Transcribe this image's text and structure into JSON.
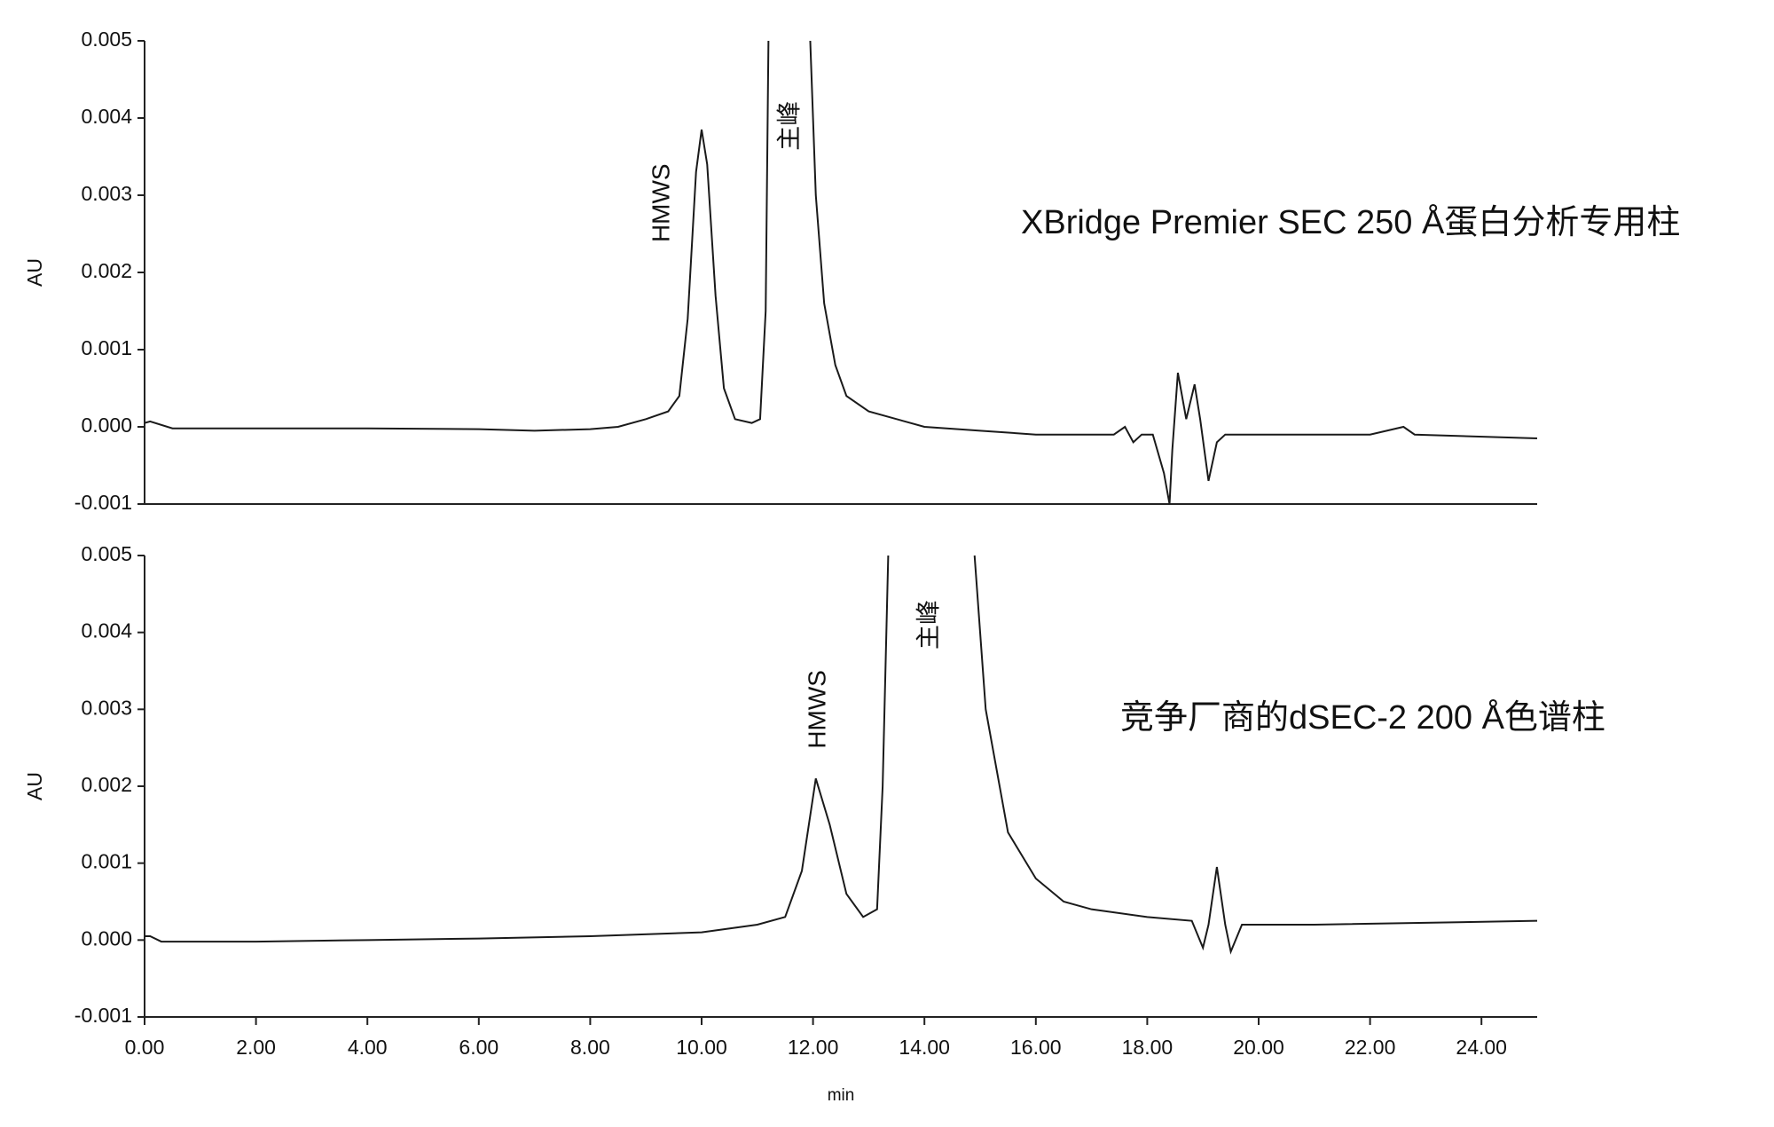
{
  "chart_data": [
    {
      "type": "line",
      "title": "XBridge Premier SEC 250 Å蛋白分析专用柱",
      "ylabel": "AU",
      "annotations": [
        "HMWS",
        "主峰"
      ],
      "xlim": [
        0,
        25
      ],
      "ylim": [
        -0.001,
        0.005
      ],
      "yticks": [
        -0.001,
        {
          "value": 0,
          "label": "0.000"
        },
        0.001,
        0.002,
        0.003,
        0.004,
        0.005
      ],
      "color": "#1a1a1a",
      "x": [
        0,
        0.1,
        0.5,
        2,
        4,
        6,
        7,
        8,
        8.5,
        9.0,
        9.4,
        9.6,
        9.75,
        9.9,
        10.0,
        10.1,
        10.25,
        10.4,
        10.6,
        10.9,
        11.05,
        11.15,
        11.2,
        11.55,
        11.95,
        12.05,
        12.2,
        12.4,
        12.6,
        13,
        14,
        15,
        16,
        17,
        17.4,
        17.6,
        17.75,
        17.9,
        18.1,
        18.3,
        18.4,
        18.45,
        18.55,
        18.7,
        18.85,
        18.95,
        19.1,
        19.25,
        19.4,
        20,
        21,
        22,
        22.6,
        22.8,
        25
      ],
      "values": [
        5e-05,
        7e-05,
        -2e-05,
        -2e-05,
        -2e-05,
        -3e-05,
        -5e-05,
        -3e-05,
        0.0,
        0.0001,
        0.0002,
        0.0004,
        0.0014,
        0.0033,
        0.00385,
        0.0034,
        0.0017,
        0.0005,
        0.0001,
        5e-05,
        0.0001,
        0.0015,
        0.005,
        null,
        0.005,
        0.003,
        0.0016,
        0.0008,
        0.0004,
        0.0002,
        0.0,
        -5e-05,
        -0.0001,
        -0.0001,
        -0.0001,
        0.0,
        -0.0002,
        -0.0001,
        -0.0001,
        -0.0006,
        -0.001,
        -0.0003,
        0.0007,
        0.0001,
        0.00055,
        0.0001,
        -0.0007,
        -0.0002,
        -0.0001,
        -0.0001,
        -0.0001,
        -0.0001,
        0.0,
        -0.0001,
        -0.00015
      ]
    },
    {
      "type": "line",
      "title": "竞争厂商的dSEC-2 200 Å色谱柱",
      "ylabel": "AU",
      "xlabel": "min",
      "annotations": [
        "HMWS",
        "主峰"
      ],
      "xlim": [
        0,
        25
      ],
      "ylim": [
        -0.001,
        0.005
      ],
      "yticks": [
        -0.001,
        {
          "value": 0,
          "label": "0.000"
        },
        0.001,
        0.002,
        0.003,
        0.004,
        0.005
      ],
      "xticks": [
        {
          "value": 0,
          "label": "0.00"
        },
        {
          "value": 2,
          "label": "2.00"
        },
        {
          "value": 4,
          "label": "4.00"
        },
        {
          "value": 6,
          "label": "6.00"
        },
        {
          "value": 8,
          "label": "8.00"
        },
        {
          "value": 10,
          "label": "10.00"
        },
        {
          "value": 12,
          "label": "12.00"
        },
        {
          "value": 14,
          "label": "14.00"
        },
        {
          "value": 16,
          "label": "16.00"
        },
        {
          "value": 18,
          "label": "18.00"
        },
        {
          "value": 20,
          "label": "20.00"
        },
        {
          "value": 22,
          "label": "22.00"
        },
        {
          "value": 24,
          "label": "24.00"
        }
      ],
      "color": "#1a1a1a",
      "x": [
        0,
        0.1,
        0.3,
        2,
        4,
        6,
        8,
        10,
        11,
        11.5,
        11.8,
        12.05,
        12.3,
        12.6,
        12.9,
        13.15,
        13.25,
        13.35,
        14.1,
        14.9,
        15.1,
        15.5,
        16,
        16.5,
        17,
        18,
        18.8,
        19.0,
        19.1,
        19.25,
        19.4,
        19.5,
        19.7,
        21,
        25
      ],
      "values": [
        5e-05,
        5e-05,
        -2e-05,
        -2e-05,
        0.0,
        2e-05,
        5e-05,
        0.0001,
        0.0002,
        0.0003,
        0.0009,
        0.0021,
        0.0015,
        0.0006,
        0.0003,
        0.0004,
        0.002,
        0.005,
        null,
        0.005,
        0.003,
        0.0014,
        0.0008,
        0.0005,
        0.0004,
        0.0003,
        0.00025,
        -0.0001,
        0.0002,
        0.00095,
        0.0002,
        -0.00015,
        0.0002,
        0.0002,
        0.00025
      ]
    }
  ]
}
